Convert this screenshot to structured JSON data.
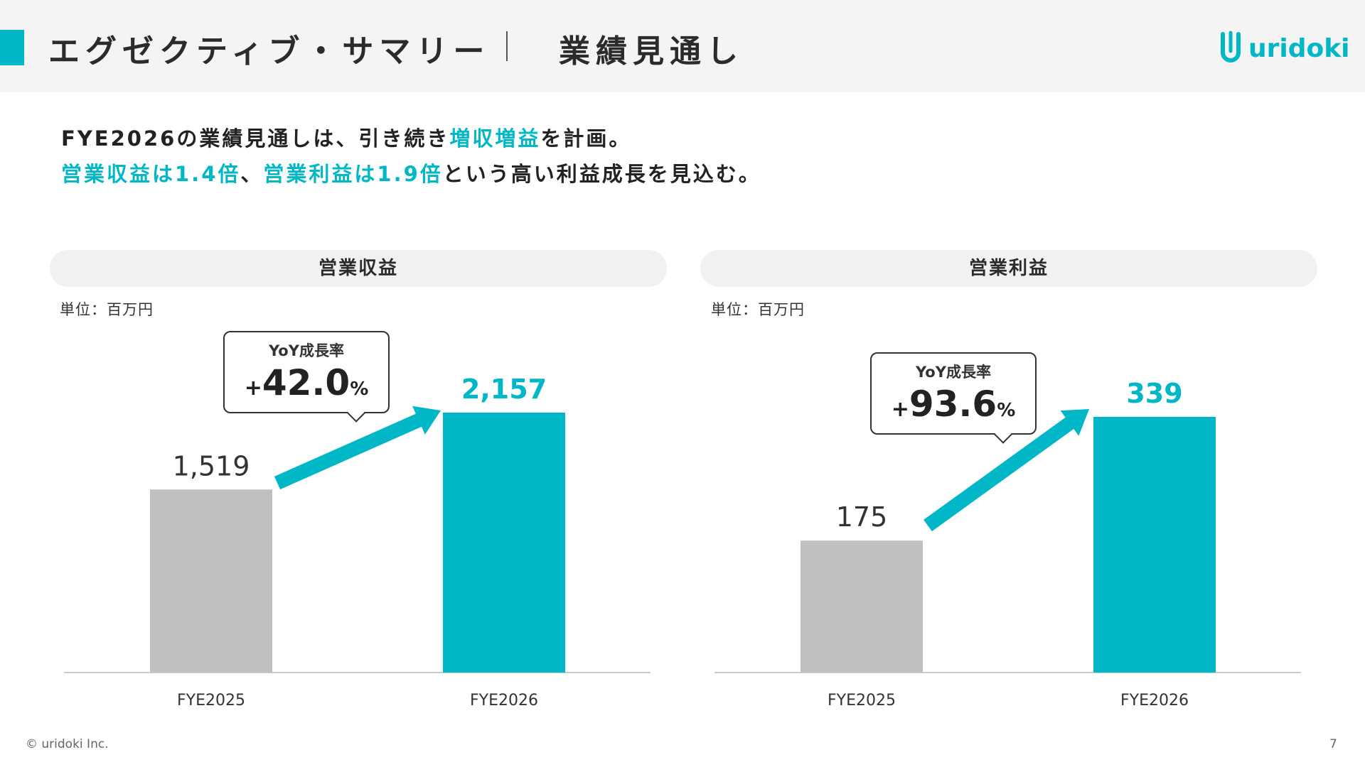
{
  "header": {
    "title": "エグゼクティブ・サマリー",
    "subtitle": "業績見通し",
    "logo_text": "uridoki"
  },
  "lead": {
    "line1_a": "FYE2026の業績見通しは、引き続き",
    "line1_hl": "増収増益",
    "line1_b": "を計画。",
    "line2_hl1": "営業収益は1.4倍",
    "line2_a": "、",
    "line2_hl2": "営業利益は1.9倍",
    "line2_b": "という高い利益成長を見込む。"
  },
  "colors": {
    "accent": "#00b7c7",
    "prior_bar": "#c0c0c0",
    "pill_bg": "#f1f1f1",
    "header_bg": "#f4f4f4"
  },
  "chart_data": [
    {
      "type": "bar",
      "title": "営業収益",
      "unit_label": "単位：百万円",
      "categories": [
        "FYE2025",
        "FYE2026"
      ],
      "values": [
        1519,
        2157
      ],
      "value_labels": [
        "1,519",
        "2,157"
      ],
      "growth_label": "YoY成長率",
      "growth_sign": "+",
      "growth_value": "42.0",
      "growth_unit": "%"
    },
    {
      "type": "bar",
      "title": "営業利益",
      "unit_label": "単位：百万円",
      "categories": [
        "FYE2025",
        "FYE2026"
      ],
      "values": [
        175,
        339
      ],
      "value_labels": [
        "175",
        "339"
      ],
      "growth_label": "YoY成長率",
      "growth_sign": "+",
      "growth_value": "93.6",
      "growth_unit": "%"
    }
  ],
  "footer": {
    "copyright": "© uridoki Inc.",
    "page": "7"
  }
}
